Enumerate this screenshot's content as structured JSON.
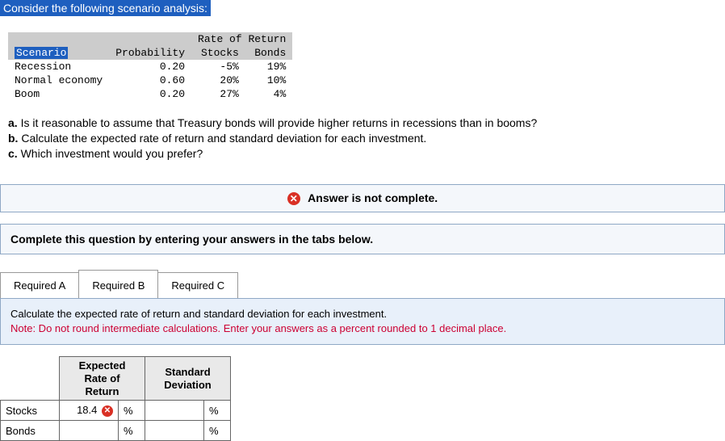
{
  "title": "Consider the following scenario analysis:",
  "scenario_table": {
    "super_header": "Rate of Return",
    "cols": [
      "Scenario",
      "Probability",
      "Stocks",
      "Bonds"
    ],
    "rows": [
      {
        "label": "Recession",
        "prob": "0.20",
        "stocks": "-5%",
        "bonds": "19%"
      },
      {
        "label": "Normal economy",
        "prob": "0.60",
        "stocks": "20%",
        "bonds": "10%"
      },
      {
        "label": "Boom",
        "prob": "0.20",
        "stocks": "27%",
        "bonds": "4%"
      }
    ]
  },
  "questions": {
    "a": "Is it reasonable to assume that Treasury bonds will provide higher returns in recessions than in booms?",
    "b": "Calculate the expected rate of return and standard deviation for each investment.",
    "c": "Which investment would you prefer?"
  },
  "status": {
    "icon": "✕",
    "text": "Answer is not complete."
  },
  "instruction": "Complete this question by entering your answers in the tabs below.",
  "tabs": [
    "Required A",
    "Required B",
    "Required C"
  ],
  "active_tab": 1,
  "prompt": {
    "main": "Calculate the expected rate of return and standard deviation for each investment.",
    "note": "Note: Do not round intermediate calculations. Enter your answers as a percent rounded to 1 decimal place."
  },
  "answer_table": {
    "headers": [
      "Expected Rate of Return",
      "Standard Deviation"
    ],
    "rows": [
      {
        "label": "Stocks",
        "erv": "18.4",
        "erv_wrong": true,
        "sd": ""
      },
      {
        "label": "Bonds",
        "erv": "",
        "erv_wrong": false,
        "sd": ""
      }
    ],
    "pct": "%"
  }
}
